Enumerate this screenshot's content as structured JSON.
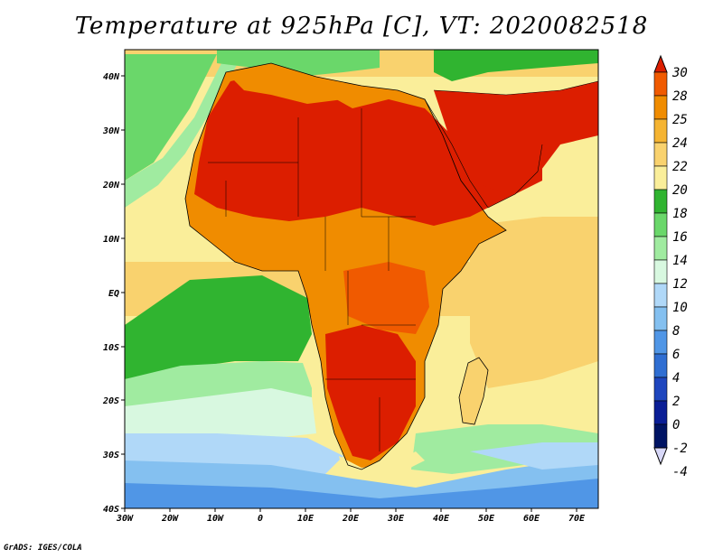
{
  "title": "Temperature at 925hPa [C], VT: 2020082518",
  "credit": "GrADS: IGES/COLA",
  "map": {
    "lon_labels": [
      "30W",
      "20W",
      "10W",
      "0",
      "10E",
      "20E",
      "30E",
      "40E",
      "50E",
      "60E",
      "70E"
    ],
    "lat_labels": [
      "40N",
      "30N",
      "20N",
      "10N",
      "EQ",
      "10S",
      "20S",
      "30S",
      "40S"
    ]
  },
  "colorbar": {
    "labels": [
      "30",
      "28",
      "25",
      "24",
      "22",
      "20",
      "18",
      "16",
      "14",
      "12",
      "10",
      "8",
      "6",
      "4",
      "2",
      "0",
      "-2",
      "-4"
    ],
    "colors": [
      "#dc1e00",
      "#f05a00",
      "#f08c00",
      "#f5b432",
      "#f9d26e",
      "#faee9a",
      "#30b430",
      "#6ad76a",
      "#a0eba0",
      "#d8f8e0",
      "#b0d8f8",
      "#84c0f0",
      "#5096e6",
      "#2f6ed2",
      "#1e46be",
      "#0a1e96",
      "#001464",
      "#d8d8f8"
    ]
  }
}
